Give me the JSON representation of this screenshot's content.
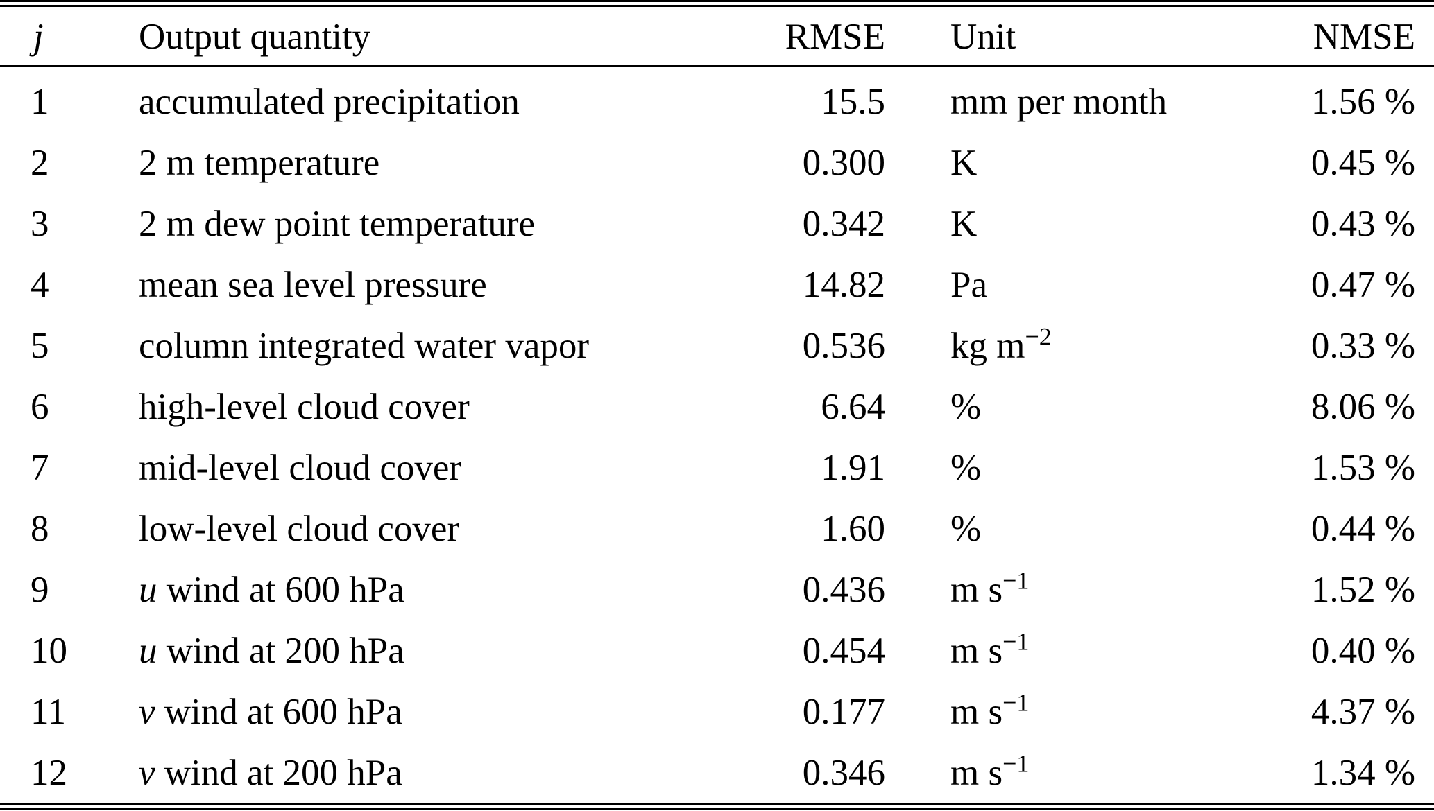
{
  "table": {
    "columns": {
      "j": "j",
      "quantity": "Output quantity",
      "rmse": "RMSE",
      "unit": "Unit",
      "nmse": "NMSE"
    },
    "rows": [
      {
        "j": "1",
        "qty_var": "",
        "qty": "accumulated precipitation",
        "rmse": "15.5",
        "unit_base": "mm per month",
        "unit_sup": "",
        "nmse": "1.56 %"
      },
      {
        "j": "2",
        "qty_var": "",
        "qty": "2 m temperature",
        "rmse": "0.300",
        "unit_base": "K",
        "unit_sup": "",
        "nmse": "0.45 %"
      },
      {
        "j": "3",
        "qty_var": "",
        "qty": "2 m dew point temperature",
        "rmse": "0.342",
        "unit_base": "K",
        "unit_sup": "",
        "nmse": "0.43 %"
      },
      {
        "j": "4",
        "qty_var": "",
        "qty": "mean sea level pressure",
        "rmse": "14.82",
        "unit_base": "Pa",
        "unit_sup": "",
        "nmse": "0.47 %"
      },
      {
        "j": "5",
        "qty_var": "",
        "qty": "column integrated water vapor",
        "rmse": "0.536",
        "unit_base": "kg m",
        "unit_sup": "−2",
        "nmse": "0.33 %"
      },
      {
        "j": "6",
        "qty_var": "",
        "qty": "high-level cloud cover",
        "rmse": "6.64",
        "unit_base": "%",
        "unit_sup": "",
        "nmse": "8.06 %"
      },
      {
        "j": "7",
        "qty_var": "",
        "qty": "mid-level cloud cover",
        "rmse": "1.91",
        "unit_base": "%",
        "unit_sup": "",
        "nmse": "1.53 %"
      },
      {
        "j": "8",
        "qty_var": "",
        "qty": "low-level cloud cover",
        "rmse": "1.60",
        "unit_base": "%",
        "unit_sup": "",
        "nmse": "0.44 %"
      },
      {
        "j": "9",
        "qty_var": "u",
        "qty": " wind at 600 hPa",
        "rmse": "0.436",
        "unit_base": "m s",
        "unit_sup": "−1",
        "nmse": "1.52 %"
      },
      {
        "j": "10",
        "qty_var": "u",
        "qty": " wind at 200 hPa",
        "rmse": "0.454",
        "unit_base": "m s",
        "unit_sup": "−1",
        "nmse": "0.40 %"
      },
      {
        "j": "11",
        "qty_var": "v",
        "qty": " wind at 600 hPa",
        "rmse": "0.177",
        "unit_base": "m s",
        "unit_sup": "−1",
        "nmse": "4.37 %"
      },
      {
        "j": "12",
        "qty_var": "v",
        "qty": " wind at 200 hPa",
        "rmse": "0.346",
        "unit_base": "m s",
        "unit_sup": "−1",
        "nmse": "1.34 %"
      }
    ]
  }
}
